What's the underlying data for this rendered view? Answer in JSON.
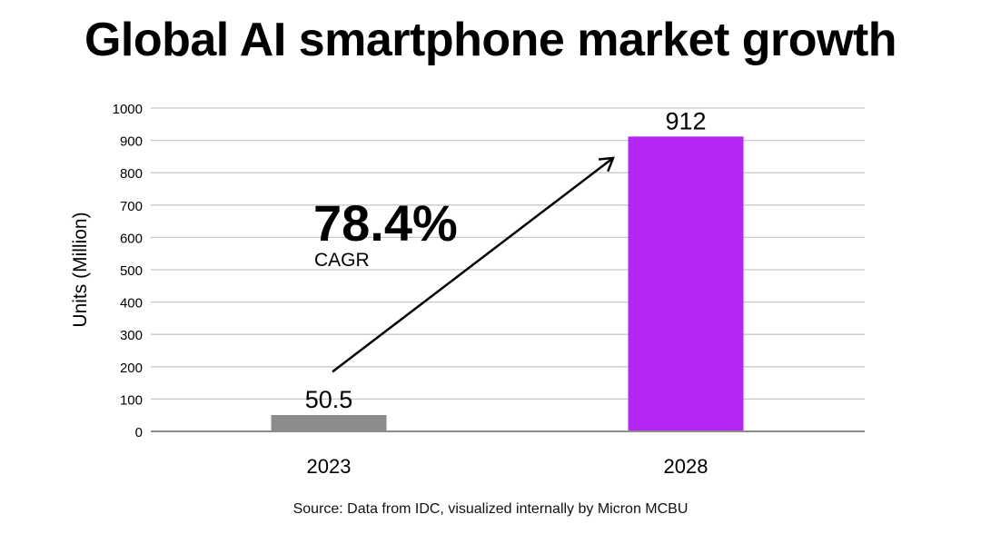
{
  "chart_data": {
    "type": "bar",
    "title": "Global AI smartphone market growth",
    "xlabel": "",
    "ylabel": "Units (Million)",
    "categories": [
      "2023",
      "2028"
    ],
    "values": [
      50.5,
      912
    ],
    "data_labels": [
      "50.5",
      "912"
    ],
    "bar_colors": [
      "#8c8c8c",
      "#b526f2"
    ],
    "ylim": [
      0,
      1000
    ],
    "yticks": [
      0,
      100,
      200,
      300,
      400,
      500,
      600,
      700,
      800,
      900,
      1000
    ],
    "grid": true,
    "legend": "none",
    "annotation": {
      "value": "78.4%",
      "label": "CAGR",
      "arrow": {
        "from": {
          "category": "2023",
          "value": 190
        },
        "to": {
          "category": "2028",
          "value": 930
        }
      }
    },
    "source": "Source: Data from IDC, visualized internally by Micron MCBU"
  },
  "colors": {
    "grid": "#c8c8c8",
    "axis": "#8c8c8c",
    "text": "#000000"
  }
}
